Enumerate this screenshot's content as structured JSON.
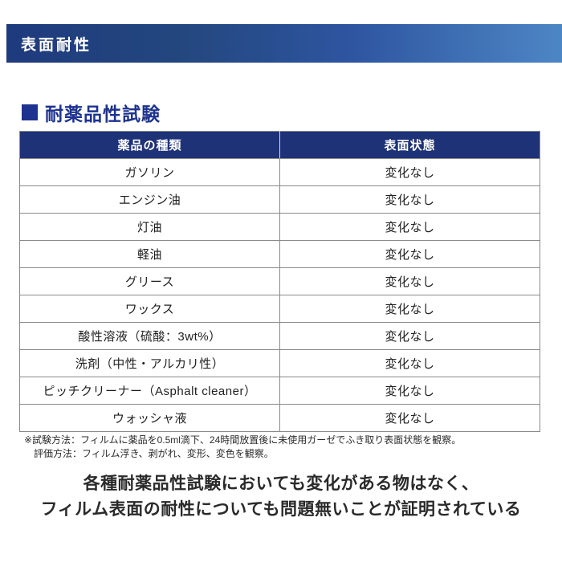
{
  "banner": {
    "title": "表面耐性"
  },
  "section": {
    "title": "耐薬品性試験"
  },
  "table": {
    "headers": [
      "薬品の種類",
      "表面状態"
    ],
    "rows": [
      [
        "ガソリン",
        "変化なし"
      ],
      [
        "エンジン油",
        "変化なし"
      ],
      [
        "灯油",
        "変化なし"
      ],
      [
        "軽油",
        "変化なし"
      ],
      [
        "グリース",
        "変化なし"
      ],
      [
        "ワックス",
        "変化なし"
      ],
      [
        "酸性溶液（硫酸：3wt%）",
        "変化なし"
      ],
      [
        "洗剤（中性・アルカリ性）",
        "変化なし"
      ],
      [
        "ピッチクリーナー（Asphalt cleaner）",
        "変化なし"
      ],
      [
        "ウォッシャ液",
        "変化なし"
      ]
    ]
  },
  "footnote": {
    "line1": "※試験方法：フィルムに薬品を0.5ml滴下、24時間放置後に未使用ガーゼでふき取り表面状態を観察。",
    "line2": "評価方法：フィルム浮き、剥がれ、変形、変色を観察。"
  },
  "conclusion": {
    "line1": "各種耐薬品性試験においても変化がある物はなく、",
    "line2": "フィルム表面の耐性についても問題無いことが証明されている"
  },
  "colors": {
    "banner_gradient_start": "#1e3b7d",
    "banner_gradient_end": "#4d86c5",
    "heading_accent": "#1d338e",
    "table_header_bg": "#1e3278",
    "table_border": "#8a8a8a"
  }
}
